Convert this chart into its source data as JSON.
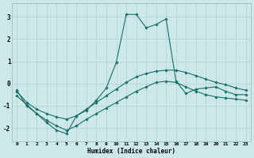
{
  "xlabel": "Humidex (Indice chaleur)",
  "xlim": [
    -0.5,
    23.5
  ],
  "ylim": [
    -2.6,
    3.6
  ],
  "yticks": [
    -2,
    -1,
    0,
    1,
    2,
    3
  ],
  "xticks": [
    0,
    1,
    2,
    3,
    4,
    5,
    6,
    7,
    8,
    9,
    10,
    11,
    12,
    13,
    14,
    15,
    16,
    17,
    18,
    19,
    20,
    21,
    22,
    23
  ],
  "bg_color": "#cce8e8",
  "line_color": "#1a6e6a",
  "grid_color": "#b8d4d4",
  "spine_color": "#a0bcbc",
  "line1_y": [
    -0.3,
    -1.0,
    -1.35,
    -1.75,
    -2.1,
    -2.25,
    -1.45,
    -1.2,
    -0.75,
    -0.2,
    0.95,
    3.1,
    3.1,
    2.5,
    2.65,
    2.9,
    0.1,
    -0.45,
    -0.25,
    -0.2,
    -0.15,
    -0.35,
    -0.5,
    -0.5
  ],
  "line2_y": [
    -0.35,
    -0.85,
    -1.15,
    -1.35,
    -1.5,
    -1.6,
    -1.45,
    -1.15,
    -0.85,
    -0.55,
    -0.25,
    0.05,
    0.3,
    0.45,
    0.55,
    0.6,
    0.6,
    0.5,
    0.35,
    0.2,
    0.05,
    -0.05,
    -0.2,
    -0.3
  ],
  "line3_y": [
    -0.55,
    -0.95,
    -1.35,
    -1.65,
    -1.9,
    -2.1,
    -1.9,
    -1.6,
    -1.35,
    -1.1,
    -0.85,
    -0.6,
    -0.35,
    -0.15,
    0.05,
    0.1,
    0.05,
    -0.15,
    -0.35,
    -0.5,
    -0.6,
    -0.65,
    -0.7,
    -0.75
  ]
}
